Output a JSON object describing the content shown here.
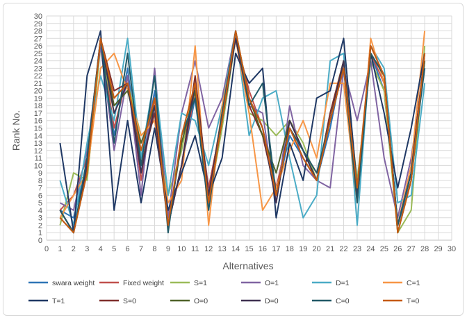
{
  "chart_data": {
    "type": "line",
    "title": "",
    "xlabel": "Alternatives",
    "ylabel": "Rank No.",
    "xlim": [
      0,
      30
    ],
    "ylim": [
      0,
      30
    ],
    "grid": true,
    "legend_position": "bottom",
    "x": [
      1,
      2,
      3,
      4,
      5,
      6,
      7,
      8,
      9,
      10,
      11,
      12,
      13,
      14,
      15,
      16,
      17,
      18,
      19,
      20,
      21,
      22,
      23,
      24,
      25,
      26,
      27,
      28
    ],
    "x_ticks": [
      "0",
      "1",
      "2",
      "3",
      "4",
      "5",
      "6",
      "7",
      "8",
      "9",
      "10",
      "11",
      "12",
      "13",
      "14",
      "15",
      "16",
      "17",
      "18",
      "19",
      "20",
      "21",
      "22",
      "23",
      "24",
      "25",
      "26",
      "27",
      "28",
      "29",
      "30"
    ],
    "y_ticks": [
      "0",
      "1",
      "2",
      "3",
      "4",
      "5",
      "6",
      "7",
      "8",
      "9",
      "10",
      "11",
      "12",
      "13",
      "14",
      "15",
      "16",
      "17",
      "18",
      "19",
      "20",
      "21",
      "22",
      "23",
      "24",
      "25",
      "26",
      "27",
      "28",
      "29",
      "30"
    ],
    "series": [
      {
        "name": "swara weight",
        "color": "#2e75b6",
        "values": [
          4,
          3,
          10,
          27,
          14,
          23,
          9,
          20,
          2,
          10,
          19,
          7,
          16,
          27,
          19,
          15,
          6,
          14,
          11,
          8,
          15,
          24,
          6,
          25,
          20,
          2,
          8,
          24
        ]
      },
      {
        "name": "Fixed weight",
        "color": "#c0504d",
        "values": [
          4,
          6,
          11,
          27,
          15,
          22,
          8,
          19,
          2,
          10,
          20,
          7,
          16,
          27,
          20,
          15,
          7,
          15,
          12,
          9,
          16,
          23,
          7,
          25,
          21,
          2,
          9,
          24
        ]
      },
      {
        "name": "S=1",
        "color": "#9bbb59",
        "values": [
          2,
          9,
          8,
          26,
          17,
          21,
          14,
          16,
          6,
          12,
          21,
          5,
          15,
          27,
          17,
          16,
          14,
          16,
          13,
          8,
          17,
          24,
          8,
          24,
          20,
          1,
          4,
          26
        ]
      },
      {
        "name": "O=1",
        "color": "#8064a2",
        "values": [
          5,
          4,
          12,
          26,
          12,
          22,
          6,
          23,
          3,
          17,
          24,
          15,
          19,
          28,
          18,
          17,
          5,
          18,
          10,
          8,
          7,
          23,
          16,
          24,
          11,
          3,
          11,
          23
        ]
      },
      {
        "name": "D=1",
        "color": "#4bacc6",
        "values": [
          8,
          2,
          13,
          22,
          16,
          27,
          11,
          22,
          6,
          17,
          16,
          10,
          18,
          28,
          14,
          19,
          20,
          11,
          3,
          6,
          24,
          25,
          2,
          26,
          23,
          5,
          6,
          21
        ]
      },
      {
        "name": "C=1",
        "color": "#f79646",
        "values": [
          3,
          6,
          9,
          23,
          25,
          20,
          14,
          16,
          5,
          8,
          26,
          2,
          18,
          27,
          17,
          4,
          7,
          12,
          16,
          11,
          21,
          21,
          5,
          27,
          21,
          2,
          10,
          28
        ]
      },
      {
        "name": "T=1",
        "color": "#1f3864",
        "values": [
          13,
          1,
          22,
          28,
          4,
          16,
          5,
          15,
          4,
          9,
          14,
          6,
          11,
          25,
          21,
          23,
          3,
          13,
          8,
          19,
          20,
          27,
          7,
          25,
          17,
          7,
          15,
          25
        ]
      },
      {
        "name": "S=0",
        "color": "#7f2f2c",
        "values": [
          4,
          1,
          10,
          27,
          20,
          21,
          10,
          17,
          2,
          10,
          22,
          6,
          17,
          27,
          18,
          14,
          6,
          15,
          11,
          8,
          17,
          24,
          6,
          25,
          22,
          2,
          9,
          25
        ]
      },
      {
        "name": "O=0",
        "color": "#4f6228",
        "values": [
          3,
          1,
          9,
          27,
          18,
          20,
          13,
          18,
          2,
          13,
          20,
          5,
          16,
          28,
          19,
          14,
          9,
          16,
          12,
          8,
          16,
          24,
          6,
          25,
          22,
          1,
          8,
          24
        ]
      },
      {
        "name": "D=0",
        "color": "#3f3151",
        "values": [
          4,
          1,
          10,
          27,
          17,
          21,
          9,
          18,
          2,
          10,
          21,
          6,
          16,
          27,
          19,
          15,
          5,
          16,
          12,
          8,
          16,
          24,
          6,
          26,
          22,
          2,
          9,
          25
        ]
      },
      {
        "name": "C=0",
        "color": "#215967",
        "values": [
          4,
          1,
          11,
          27,
          13,
          25,
          10,
          22,
          1,
          14,
          19,
          4,
          17,
          28,
          18,
          21,
          6,
          15,
          12,
          9,
          16,
          23,
          5,
          25,
          22,
          2,
          9,
          23
        ]
      },
      {
        "name": "T=0",
        "color": "#c55a11",
        "values": [
          3,
          1,
          9,
          27,
          19,
          21,
          12,
          19,
          2,
          14,
          21,
          5,
          16,
          28,
          19,
          15,
          6,
          15,
          11,
          8,
          16,
          23,
          7,
          26,
          22,
          1,
          8,
          25
        ]
      }
    ]
  }
}
